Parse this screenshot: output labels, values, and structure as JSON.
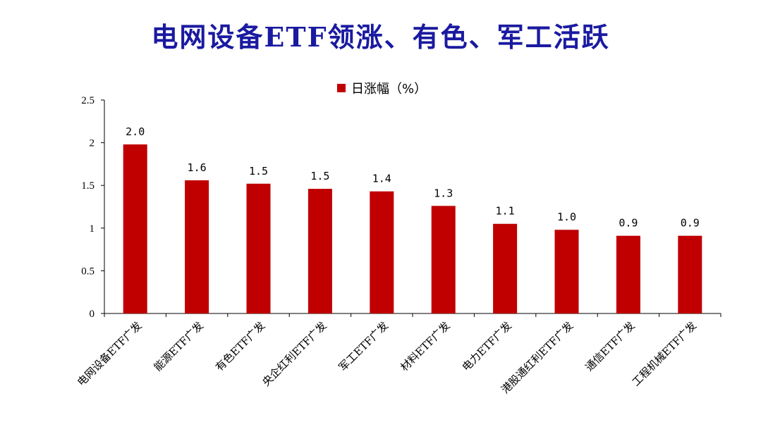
{
  "title": "电网设备ETF领涨、有色、军工活跃",
  "chart_data": {
    "type": "bar",
    "categories": [
      "电网设备ETF广发",
      "能源ETF广发",
      "有色ETF广发",
      "央企红利ETF广发",
      "军工ETF广发",
      "材料ETF广发",
      "电力ETF广发",
      "港股通红利ETF广发",
      "通信ETF广发",
      "工程机械ETF广发"
    ],
    "series": [
      {
        "name": "日涨幅（%）",
        "values": [
          1.98,
          1.56,
          1.52,
          1.46,
          1.43,
          1.26,
          1.05,
          0.98,
          0.91,
          0.91
        ]
      }
    ],
    "data_labels": [
      "2.0",
      "1.6",
      "1.5",
      "1.5",
      "1.4",
      "1.3",
      "1.1",
      "1.0",
      "0.9",
      "0.9"
    ],
    "ylim": [
      0,
      2.5
    ],
    "yticks": [
      "0",
      "0.5",
      "1",
      "1.5",
      "2",
      "2.5"
    ],
    "ytick_values": [
      0,
      0.5,
      1,
      1.5,
      2,
      2.5
    ],
    "color": "#c00000",
    "legend": "top-center",
    "grid": false
  }
}
